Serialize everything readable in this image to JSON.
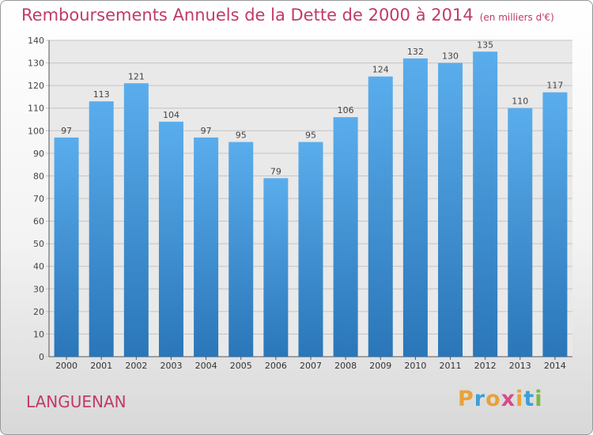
{
  "chart_data": {
    "type": "bar",
    "title": "Remboursements Annuels de la Dette de 2000 à 2014",
    "unit": "(en milliers d'€)",
    "categories": [
      "2000",
      "2001",
      "2002",
      "2003",
      "2004",
      "2005",
      "2006",
      "2007",
      "2008",
      "2009",
      "2010",
      "2011",
      "2012",
      "2013",
      "2014"
    ],
    "values": [
      97,
      113,
      121,
      104,
      97,
      95,
      79,
      95,
      106,
      124,
      132,
      130,
      135,
      110,
      117
    ],
    "ylim": [
      0,
      140
    ],
    "yticks": [
      0,
      10,
      20,
      30,
      40,
      50,
      60,
      70,
      80,
      90,
      100,
      110,
      120,
      130,
      140
    ],
    "grid": true,
    "bar_color_top": "#5aadec",
    "bar_color_bottom": "#2a76b8"
  },
  "footer": {
    "place": "LANGUENAN",
    "logo_letters": [
      "P",
      "r",
      "o",
      "x",
      "i",
      "t",
      "i"
    ],
    "logo_colors": [
      "#e8a23a",
      "#3aa0d8",
      "#e8a23a",
      "#d84a8a",
      "#e8a23a",
      "#3aa0d8",
      "#7ab843"
    ]
  }
}
